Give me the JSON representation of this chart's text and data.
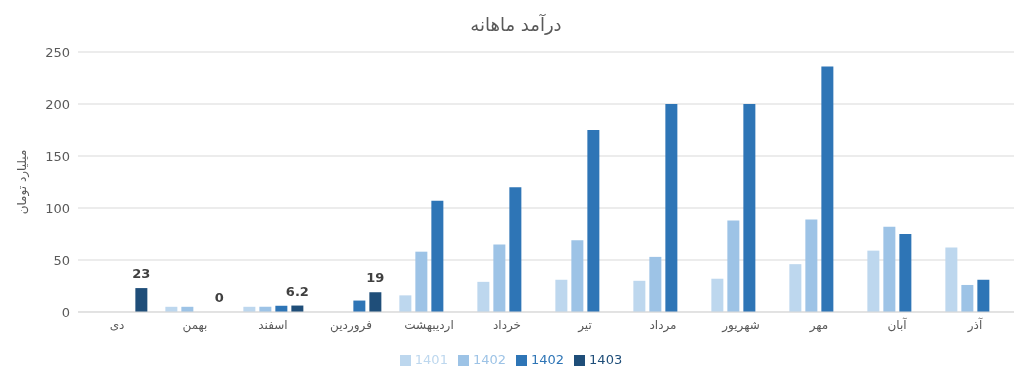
{
  "chart_data": {
    "type": "bar",
    "title": "درآمد ماهانه",
    "ylabel": "میلیارد تومان",
    "categories": [
      "دی",
      "بهمن",
      "اسفند",
      "فروردین",
      "اردیبهشت",
      "خرداد",
      "تیر",
      "مرداد",
      "شهریور",
      "مهر",
      "آبان",
      "آذر"
    ],
    "series": [
      {
        "name": "1401",
        "color": "#bdd7ee",
        "values": [
          null,
          5,
          5,
          null,
          16,
          29,
          31,
          30,
          32,
          46,
          59,
          62
        ]
      },
      {
        "name": "1402",
        "color": "#9dc3e6",
        "values": [
          null,
          5,
          5,
          null,
          58,
          65,
          69,
          53,
          88,
          89,
          82,
          26
        ]
      },
      {
        "name": "1402",
        "color": "#2e75b6",
        "values": [
          null,
          null,
          6,
          11,
          107,
          120,
          175,
          200,
          200,
          236,
          75,
          31
        ]
      },
      {
        "name": "1403",
        "color": "#1f4e79",
        "values": [
          23,
          0,
          6.2,
          19,
          null,
          null,
          null,
          null,
          null,
          null,
          null,
          null
        ],
        "value_labels": [
          "23",
          "0",
          "6.2",
          "19",
          null,
          null,
          null,
          null,
          null,
          null,
          null,
          null
        ]
      }
    ],
    "ylim": [
      0,
      250
    ],
    "yticks": [
      0,
      50,
      100,
      150,
      200,
      250
    ],
    "grid": "y",
    "legend": "bottom"
  }
}
